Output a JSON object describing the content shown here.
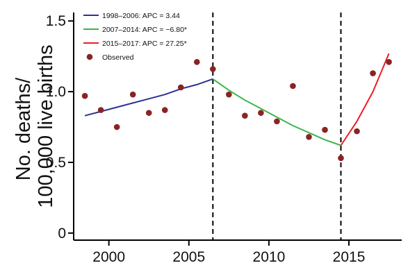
{
  "chart_data": {
    "type": "scatter",
    "title": "",
    "xlabel": "",
    "ylabel": "No. deaths/ 100,000 live births",
    "ylabel_lines": [
      "No. deaths/",
      "100,000 live births"
    ],
    "xlim": [
      1997.8,
      2018.3
    ],
    "ylim": [
      -0.05,
      1.56
    ],
    "x_ticks": [
      2000,
      2005,
      2010,
      2015
    ],
    "y_ticks": [
      0,
      0.5,
      1.0,
      1.5
    ],
    "y_tick_labels": [
      "0",
      "0.5",
      "1.0",
      "1.5"
    ],
    "grid": false,
    "legend_position": "top-left",
    "vertical_lines": [
      2006.5,
      2014.5
    ],
    "observed": {
      "name": "Observed",
      "color": "#8b2323",
      "x": [
        1998.5,
        1999.5,
        2000.5,
        2001.5,
        2002.5,
        2003.5,
        2004.5,
        2005.5,
        2006.5,
        2007.5,
        2008.5,
        2009.5,
        2010.5,
        2011.5,
        2012.5,
        2013.5,
        2014.5,
        2015.5,
        2016.5,
        2017.5
      ],
      "y": [
        0.97,
        0.87,
        0.75,
        0.98,
        0.85,
        0.87,
        1.03,
        1.21,
        1.16,
        0.98,
        0.83,
        0.85,
        0.79,
        1.04,
        0.68,
        0.73,
        0.53,
        0.72,
        1.13,
        1.21
      ]
    },
    "series": [
      {
        "name": "1998–2006: APC = 3.44",
        "color": "#2e3192",
        "x": [
          1998.5,
          1999.5,
          2000.5,
          2001.5,
          2002.5,
          2003.5,
          2004.5,
          2005.5,
          2006.5
        ],
        "y": [
          0.83,
          0.86,
          0.89,
          0.92,
          0.95,
          0.98,
          1.02,
          1.05,
          1.09
        ]
      },
      {
        "name": "2007–2014: APC = −6.80*",
        "color": "#3cb54a",
        "x": [
          2006.5,
          2007.5,
          2008.5,
          2009.5,
          2010.5,
          2011.5,
          2012.5,
          2013.5,
          2014.5
        ],
        "y": [
          1.09,
          1.01,
          0.94,
          0.88,
          0.82,
          0.76,
          0.71,
          0.66,
          0.62
        ]
      },
      {
        "name": "2015–2017: APC = 27.25*",
        "color": "#ed1c24",
        "x": [
          2014.5,
          2015.5,
          2016.5,
          2017.5
        ],
        "y": [
          0.62,
          0.79,
          1.0,
          1.27
        ]
      }
    ]
  }
}
